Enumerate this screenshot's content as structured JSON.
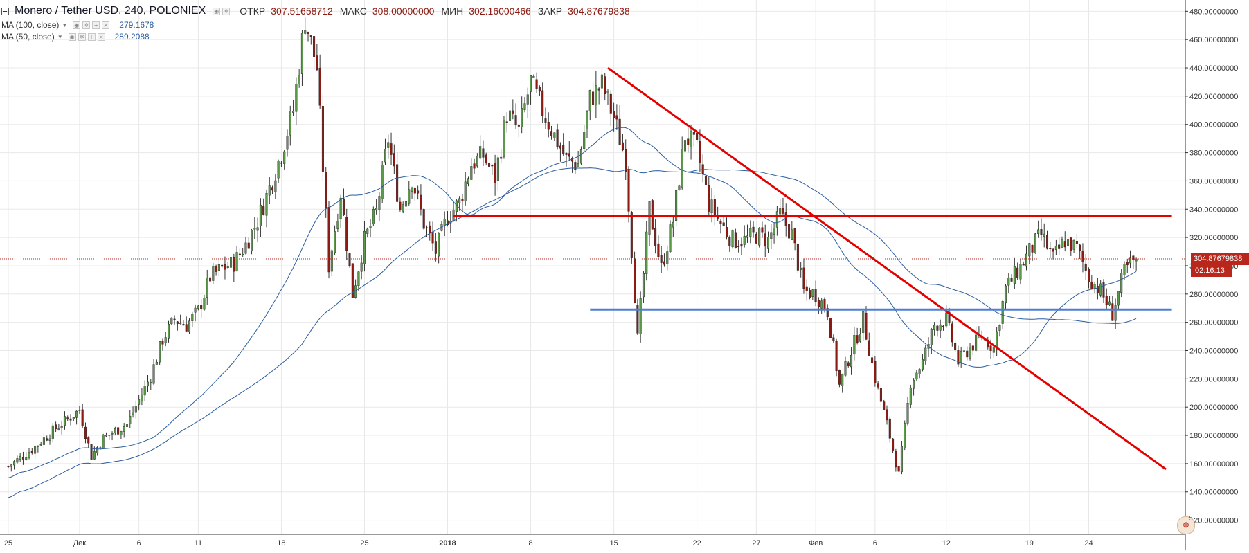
{
  "legend": {
    "symbol": "Monero / Tether USD, 240, POLONIEX",
    "open_label": "ОТКР",
    "open_value": "307.51658712",
    "high_label": "МАКС",
    "high_value": "308.00000000",
    "low_label": "МИН",
    "low_value": "302.16000466",
    "close_label": "ЗАКР",
    "close_value": "304.87679838"
  },
  "indicators": [
    {
      "label": "MA (100, close)",
      "value": "279.1678",
      "icon_names": [
        "eye-icon",
        "gear-icon",
        "plus-icon",
        "close-icon"
      ]
    },
    {
      "label": "MA (50, close)",
      "value": "289.2088",
      "icon_names": [
        "eye-icon",
        "gear-icon",
        "plus-icon",
        "close-icon"
      ]
    }
  ],
  "right_axis": {
    "last_price_label": "304.87679838",
    "countdown_label": "02:16:13",
    "watermark_count": "5"
  },
  "colors": {
    "up": "#5b9a4b",
    "down": "#8c1b13",
    "wick": "#333333",
    "ma": "#2a5d9f",
    "trendline": "#e50000",
    "support": "#4f7fd2",
    "last_price": "#b8261c",
    "grid": "#e8e8e8",
    "axis": "#333333"
  },
  "chart_data": {
    "type": "candlestick",
    "title": "Monero / Tether USD, 240, POLONIEX",
    "xlabel": "",
    "ylabel": "",
    "ylim": [
      110,
      488
    ],
    "y_ticks": [
      120,
      140,
      160,
      180,
      200,
      220,
      240,
      260,
      280,
      300,
      320,
      340,
      360,
      380,
      400,
      420,
      440,
      460,
      480
    ],
    "y_tick_labels": [
      "120.00000000",
      "140.00000000",
      "160.00000000",
      "180.00000000",
      "200.00000000",
      "220.00000000",
      "240.00000000",
      "260.00000000",
      "280.00000000",
      "300.00000000",
      "320.00000000",
      "340.00000000",
      "360.00000000",
      "380.00000000",
      "400.00000000",
      "420.00000000",
      "440.00000000",
      "460.00000000",
      "480.00000000"
    ],
    "x_range_days": [
      0,
      95
    ],
    "x_ticks": [
      {
        "day": 0,
        "label": "25",
        "bold": false
      },
      {
        "day": 6,
        "label": "Дек",
        "bold": false
      },
      {
        "day": 11,
        "label": "6",
        "bold": false
      },
      {
        "day": 16,
        "label": "11",
        "bold": false
      },
      {
        "day": 23,
        "label": "18",
        "bold": false
      },
      {
        "day": 30,
        "label": "25",
        "bold": false
      },
      {
        "day": 37,
        "label": "2018",
        "bold": true
      },
      {
        "day": 44,
        "label": "8",
        "bold": false
      },
      {
        "day": 51,
        "label": "15",
        "bold": false
      },
      {
        "day": 58,
        "label": "22",
        "bold": false
      },
      {
        "day": 63,
        "label": "27",
        "bold": false
      },
      {
        "day": 68,
        "label": "Фев",
        "bold": false
      },
      {
        "day": 73,
        "label": "6",
        "bold": false
      },
      {
        "day": 79,
        "label": "12",
        "bold": false
      },
      {
        "day": 86,
        "label": "19",
        "bold": false
      },
      {
        "day": 91,
        "label": "24",
        "bold": false
      }
    ],
    "price_anchors": [
      [
        0,
        158
      ],
      [
        2,
        170
      ],
      [
        4,
        185
      ],
      [
        6,
        198
      ],
      [
        7,
        165
      ],
      [
        8,
        178
      ],
      [
        10,
        188
      ],
      [
        11,
        205
      ],
      [
        12,
        222
      ],
      [
        13,
        248
      ],
      [
        14,
        262
      ],
      [
        15,
        258
      ],
      [
        16,
        268
      ],
      [
        17,
        292
      ],
      [
        18,
        298
      ],
      [
        19,
        302
      ],
      [
        20,
        315
      ],
      [
        21,
        332
      ],
      [
        22,
        355
      ],
      [
        23,
        380
      ],
      [
        24,
        410
      ],
      [
        25,
        475
      ],
      [
        26,
        440
      ],
      [
        27,
        300
      ],
      [
        28,
        352
      ],
      [
        29,
        280
      ],
      [
        30,
        318
      ],
      [
        31,
        338
      ],
      [
        32,
        390
      ],
      [
        33,
        340
      ],
      [
        34,
        362
      ],
      [
        35,
        330
      ],
      [
        36,
        310
      ],
      [
        37,
        335
      ],
      [
        38,
        345
      ],
      [
        39,
        372
      ],
      [
        40,
        378
      ],
      [
        41,
        362
      ],
      [
        42,
        408
      ],
      [
        43,
        395
      ],
      [
        44,
        430
      ],
      [
        45,
        410
      ],
      [
        46,
        392
      ],
      [
        47,
        375
      ],
      [
        48,
        372
      ],
      [
        49,
        418
      ],
      [
        50,
        428
      ],
      [
        51,
        405
      ],
      [
        52,
        375
      ],
      [
        53,
        248
      ],
      [
        54,
        340
      ],
      [
        55,
        298
      ],
      [
        56,
        332
      ],
      [
        57,
        392
      ],
      [
        58,
        382
      ],
      [
        59,
        344
      ],
      [
        60,
        330
      ],
      [
        61,
        318
      ],
      [
        62,
        318
      ],
      [
        63,
        322
      ],
      [
        64,
        318
      ],
      [
        65,
        336
      ],
      [
        66,
        322
      ],
      [
        67,
        282
      ],
      [
        68,
        280
      ],
      [
        69,
        268
      ],
      [
        70,
        215
      ],
      [
        71,
        240
      ],
      [
        72,
        262
      ],
      [
        73,
        220
      ],
      [
        74,
        188
      ],
      [
        75,
        152
      ],
      [
        76,
        218
      ],
      [
        77,
        232
      ],
      [
        78,
        258
      ],
      [
        79,
        262
      ],
      [
        80,
        232
      ],
      [
        81,
        242
      ],
      [
        82,
        250
      ],
      [
        83,
        242
      ],
      [
        84,
        284
      ],
      [
        85,
        296
      ],
      [
        86,
        310
      ],
      [
        87,
        322
      ],
      [
        88,
        305
      ],
      [
        89,
        318
      ],
      [
        90,
        312
      ],
      [
        91,
        292
      ],
      [
        92,
        282
      ],
      [
        93,
        266
      ],
      [
        94,
        296
      ],
      [
        95,
        305
      ]
    ],
    "series": [
      {
        "name": "MA (100, close)",
        "value": 279.1678
      },
      {
        "name": "MA (50, close)",
        "value": 289.2088
      }
    ],
    "annotations": [
      {
        "type": "trendline",
        "from": {
          "day": 50.5,
          "price": 440
        },
        "to": {
          "day": 97.5,
          "price": 156
        }
      },
      {
        "type": "hline",
        "price": 335,
        "from_day": 37.5,
        "to_day": 98
      },
      {
        "type": "hline",
        "price": 269,
        "from_day": 49,
        "to_day": 98
      },
      {
        "type": "last_price_line",
        "price": 304.88
      }
    ],
    "grid": true,
    "legend_position": "top-left"
  }
}
